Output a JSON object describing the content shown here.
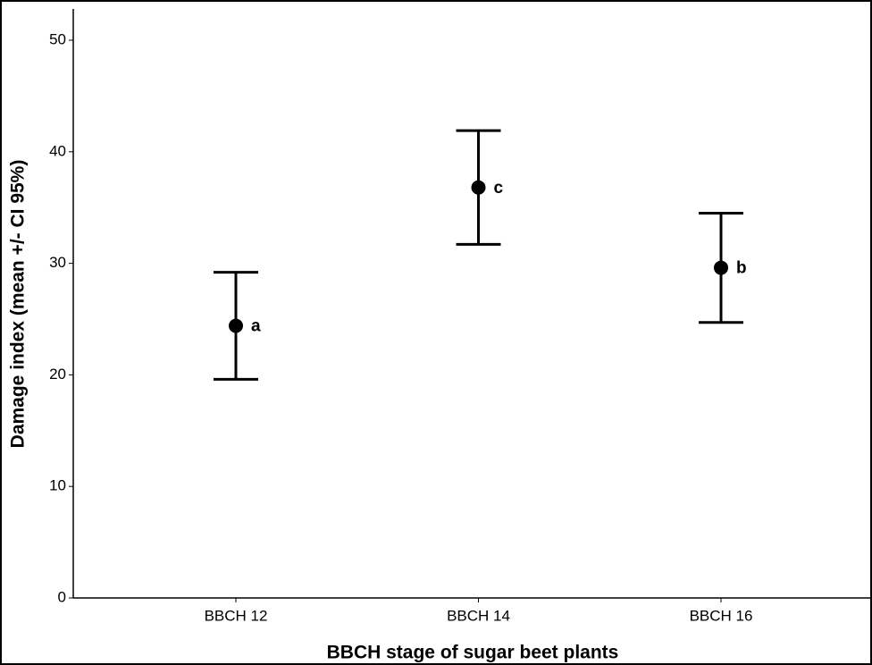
{
  "chart_data": {
    "type": "errorbar",
    "xlabel": "BBCH stage of sugar beet plants",
    "ylabel": "Damage index (mean +/- CI 95%)",
    "categories": [
      "BBCH 12",
      "BBCH 14",
      "BBCH 16"
    ],
    "values": [
      24.4,
      36.8,
      29.6
    ],
    "errors": [
      4.8,
      5.1,
      4.9
    ],
    "annotations": [
      "a",
      "c",
      "b"
    ],
    "color": "#000000",
    "ylim": [
      0,
      50
    ],
    "yticks": [
      0,
      10,
      20,
      30,
      40,
      50
    ],
    "grid": false
  }
}
